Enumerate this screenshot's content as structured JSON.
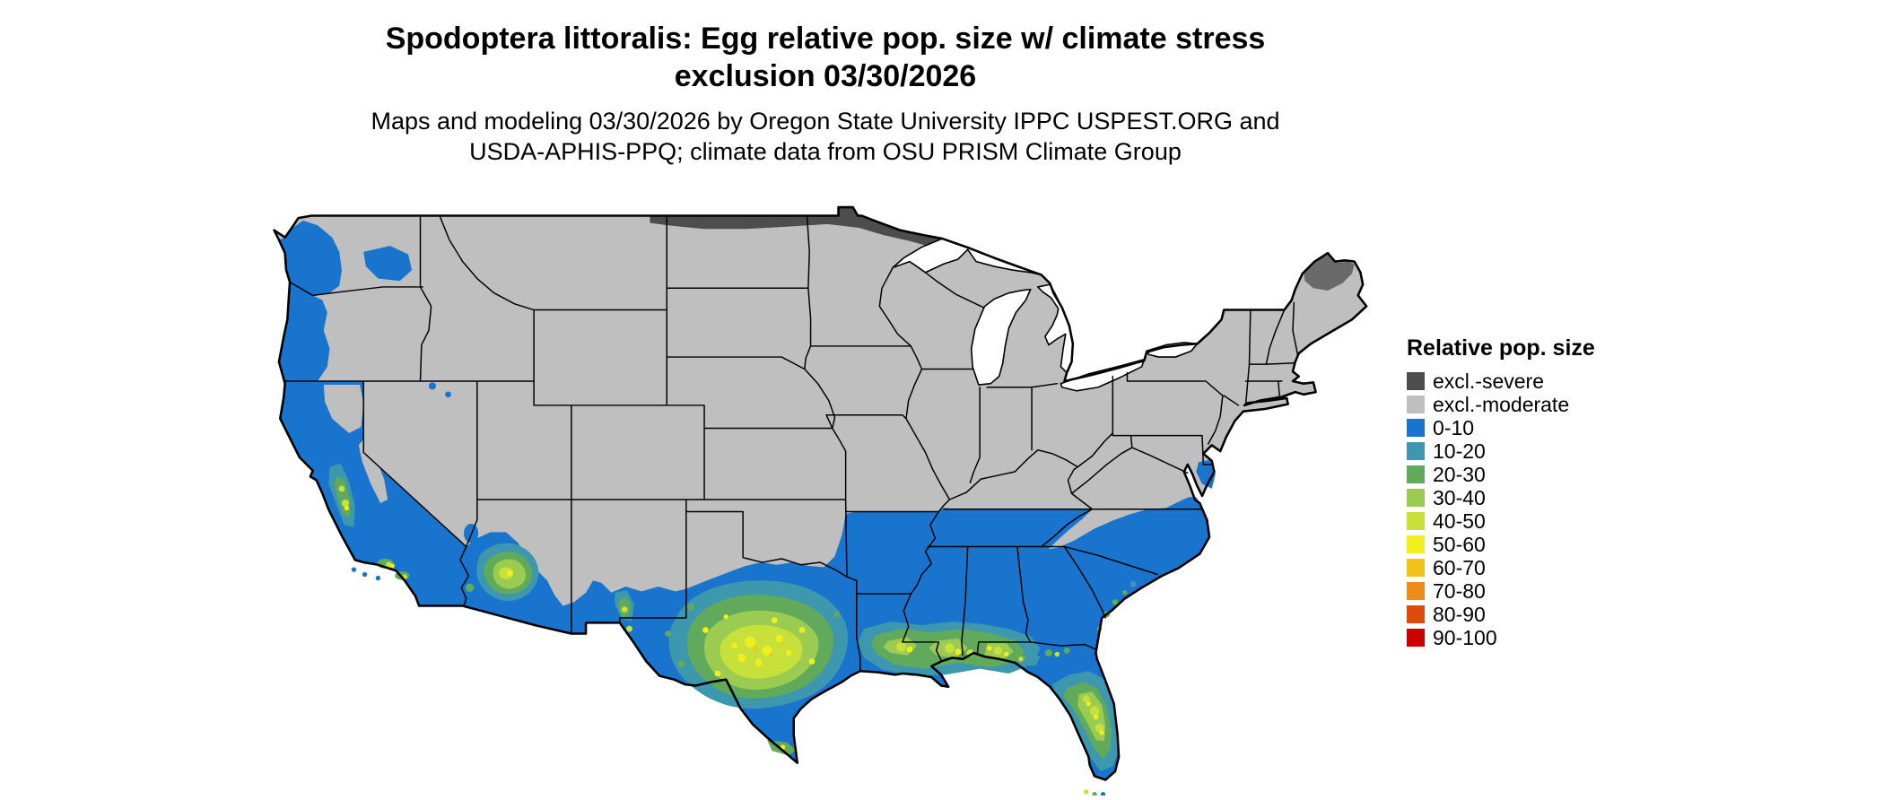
{
  "title": {
    "line1": "Spodoptera littoralis: Egg relative pop. size w/ climate stress",
    "line2": "exclusion 03/30/2026"
  },
  "subtitle": {
    "line1": "Maps and modeling 03/30/2026 by Oregon State University IPPC USPEST.ORG and",
    "line2": "USDA-APHIS-PPQ; climate data from OSU PRISM Climate Group"
  },
  "legend": {
    "title": "Relative pop. size",
    "items": [
      {
        "label": "excl.-severe",
        "key": "excl_severe"
      },
      {
        "label": "excl.-moderate",
        "key": "excl_moderate"
      },
      {
        "label": "0-10",
        "key": "k0_10"
      },
      {
        "label": "10-20",
        "key": "k10_20"
      },
      {
        "label": "20-30",
        "key": "k20_30"
      },
      {
        "label": "30-40",
        "key": "k30_40"
      },
      {
        "label": "40-50",
        "key": "k40_50"
      },
      {
        "label": "50-60",
        "key": "k50_60"
      },
      {
        "label": "60-70",
        "key": "k60_70"
      },
      {
        "label": "70-80",
        "key": "k70_80"
      },
      {
        "label": "80-90",
        "key": "k80_90"
      },
      {
        "label": "90-100",
        "key": "k90_100"
      }
    ]
  },
  "palette": {
    "excl_severe": "#4d4d4d",
    "excl_moderate": "#bfbfbf",
    "k0_10": "#1874cd",
    "k10_20": "#3d97ae",
    "k20_30": "#62aa5b",
    "k30_40": "#9ccb51",
    "k40_50": "#c8e13a",
    "k50_60": "#f0ee1f",
    "k60_70": "#f2c318",
    "k70_80": "#ed8c1b",
    "k80_90": "#dd4a10",
    "k90_100": "#cc0000"
  },
  "map": {
    "description": "Continental US choropleth of modeled relative population size with climate-stress exclusion zones"
  }
}
